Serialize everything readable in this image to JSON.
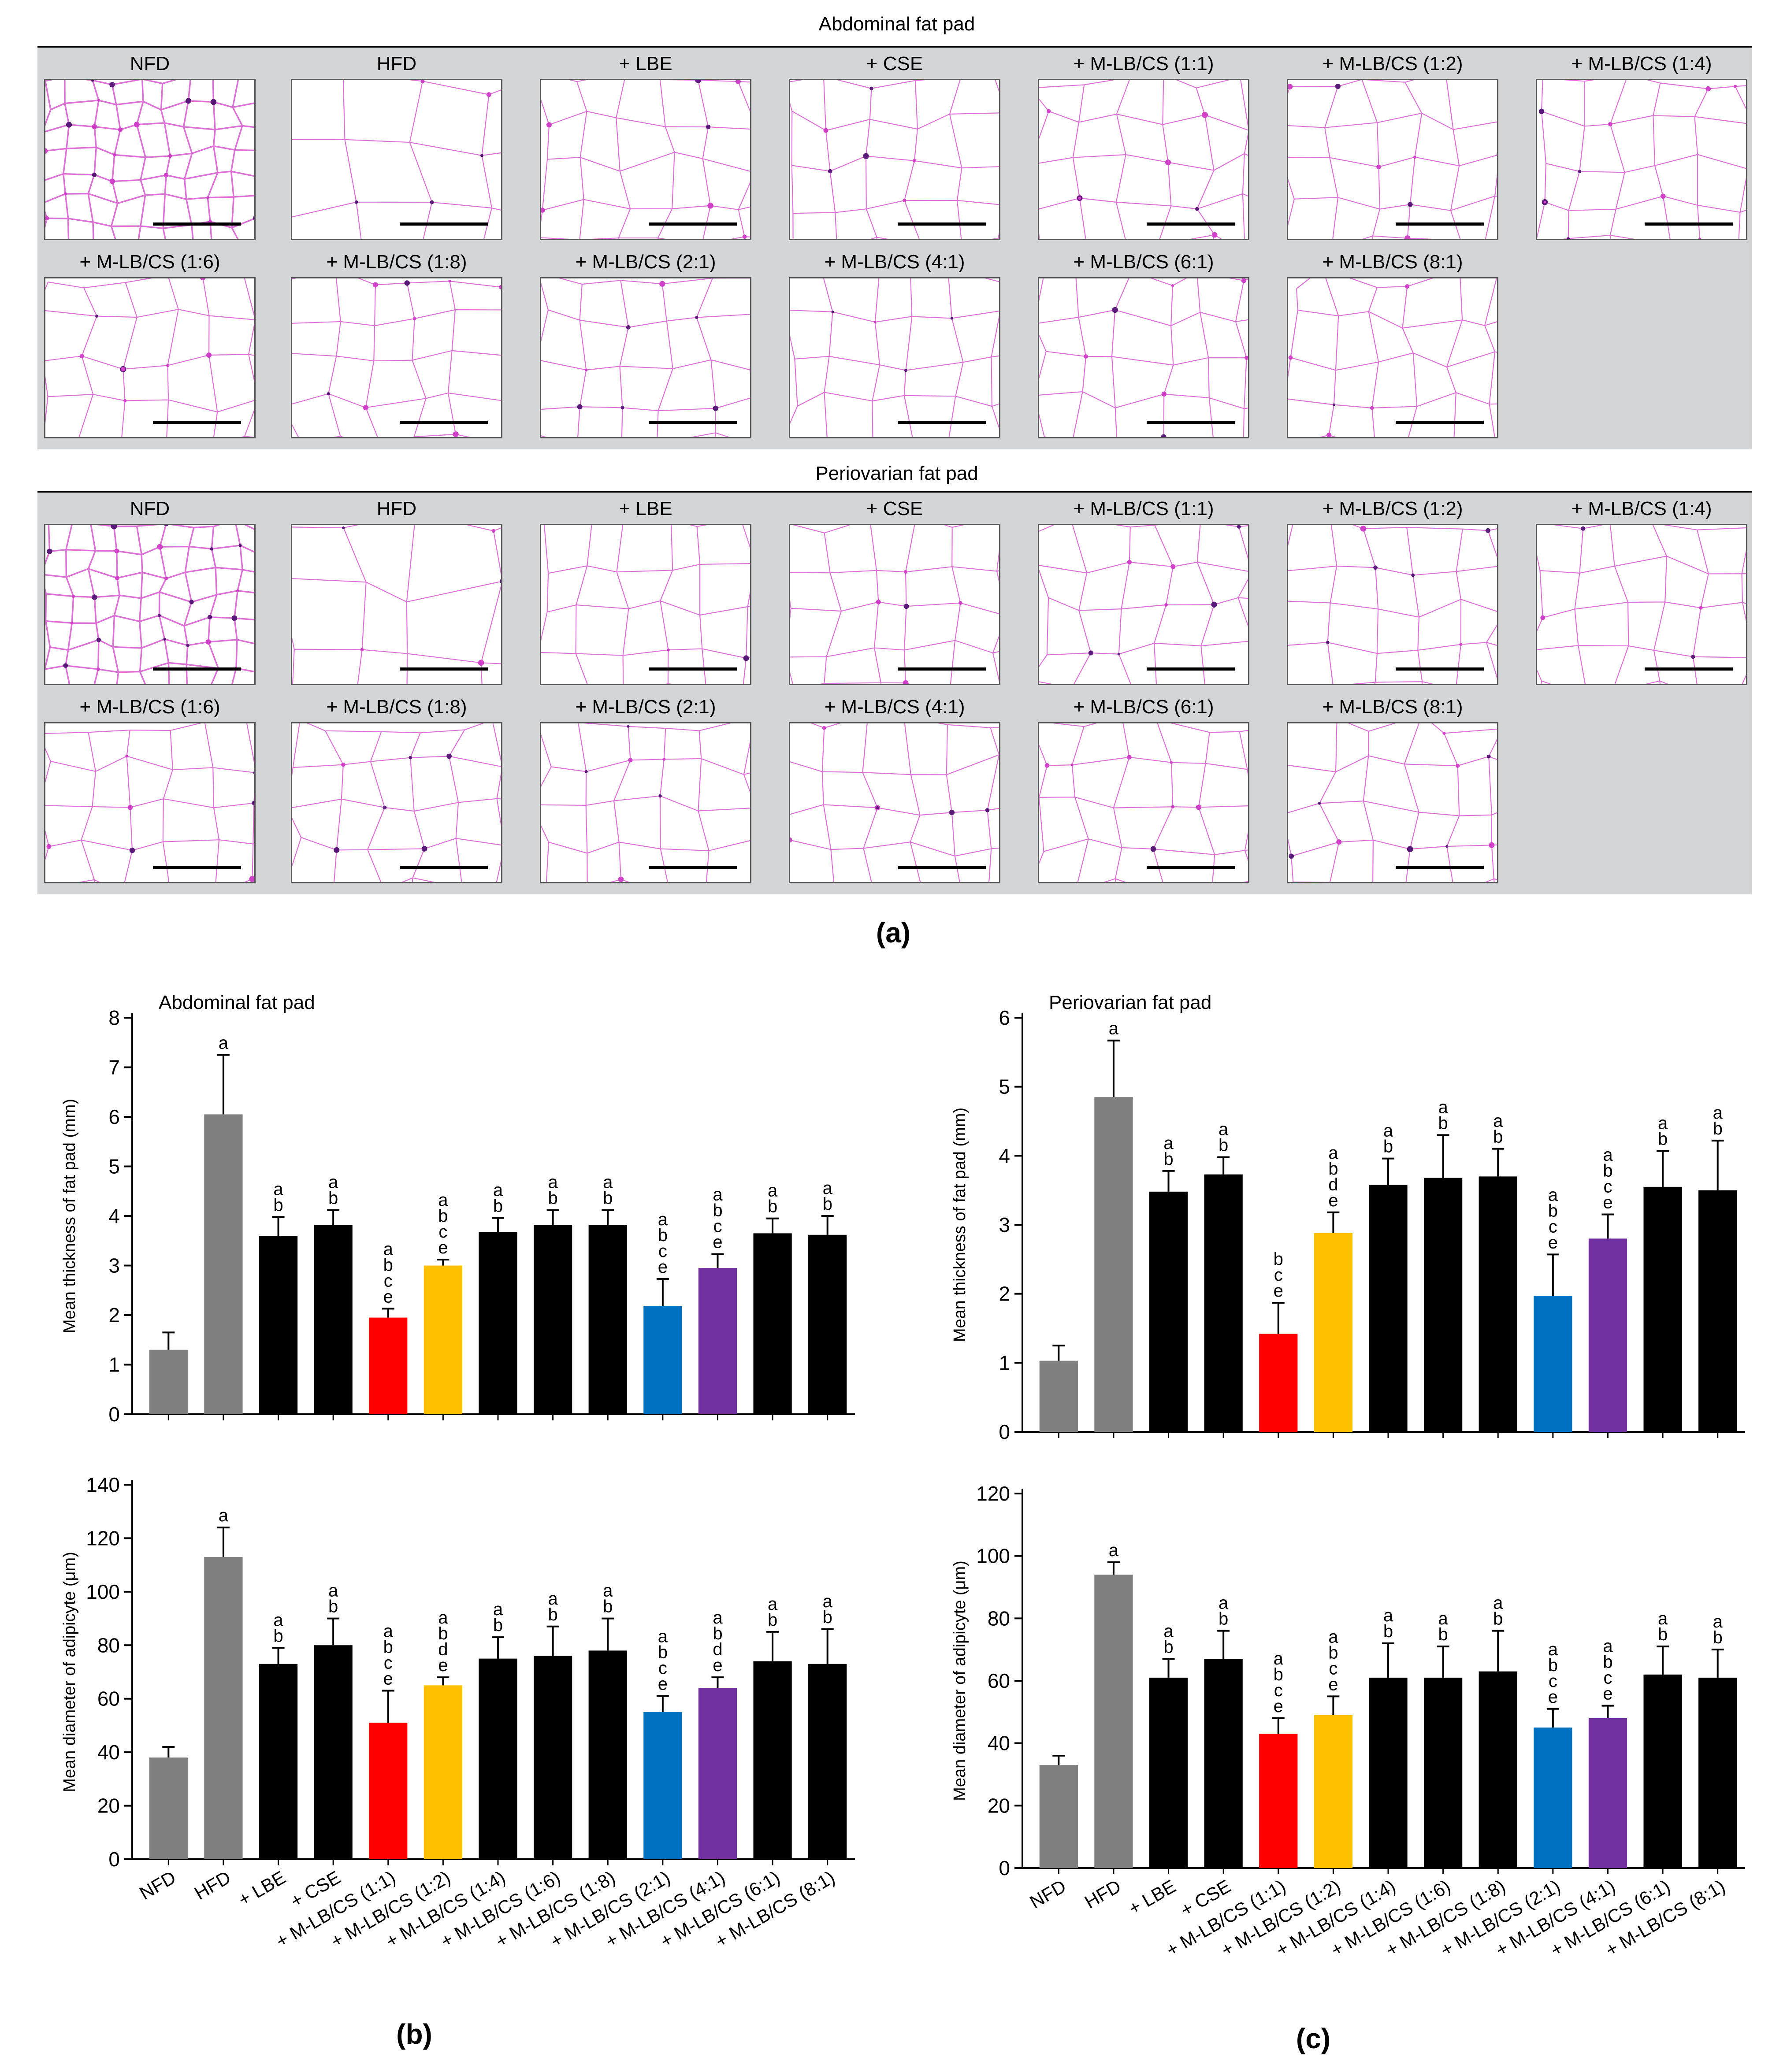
{
  "panel_a": {
    "groups": [
      "NFD",
      "HFD",
      "+ LBE",
      "+ CSE",
      "+ M-LB/CS (1:1)",
      "+ M-LB/CS (1:2)",
      "+ M-LB/CS (1:4)",
      "+ M-LB/CS (1:6)",
      "+ M-LB/CS (1:8)",
      "+ M-LB/CS (2:1)",
      "+ M-LB/CS (4:1)",
      "+ M-LB/CS (6:1)",
      "+ M-LB/CS (8:1)"
    ],
    "abdominal_title": "Abdominal fat pad",
    "periovarian_title": "Periovarian fat pad",
    "letter": "(a)"
  },
  "panel_b": {
    "letter": "(b)"
  },
  "panel_c": {
    "letter": "(c)"
  },
  "colors": {
    "gray": "#7f7f7f",
    "black": "#000000",
    "red": "#ff0000",
    "yellow": "#ffc000",
    "blue": "#0070c0",
    "purple": "#7030a0",
    "stain": "#d040c8"
  },
  "chart_data": [
    {
      "id": "b_top",
      "type": "bar",
      "title": "Abdominal fat pad",
      "xlabel": "",
      "ylabel": "Mean thickness of fat pad (mm)",
      "ylim": [
        0,
        8
      ],
      "yticks": [
        0,
        1,
        2,
        3,
        4,
        5,
        6,
        7,
        8
      ],
      "categories": [
        "NFD",
        "HFD",
        "+ LBE",
        "+ CSE",
        "+ M-LB/CS (1:1)",
        "+ M-LB/CS (1:2)",
        "+ M-LB/CS (1:4)",
        "+ M-LB/CS (1:6)",
        "+ M-LB/CS (1:8)",
        "+ M-LB/CS (2:1)",
        "+ M-LB/CS (4:1)",
        "+ M-LB/CS (6:1)",
        "+ M-LB/CS (8:1)"
      ],
      "values": [
        1.3,
        6.05,
        3.6,
        3.82,
        1.95,
        3.0,
        3.68,
        3.82,
        3.82,
        2.18,
        2.95,
        3.65,
        3.62
      ],
      "errors": [
        0.35,
        1.2,
        0.38,
        0.3,
        0.18,
        0.12,
        0.28,
        0.3,
        0.3,
        0.55,
        0.28,
        0.3,
        0.38
      ],
      "colors": [
        "gray",
        "gray",
        "black",
        "black",
        "red",
        "yellow",
        "black",
        "black",
        "black",
        "blue",
        "purple",
        "black",
        "black"
      ],
      "sig": [
        "",
        "a",
        "ab",
        "ab",
        "abce",
        "abce",
        "ab",
        "ab",
        "ab",
        "abce",
        "abce",
        "ab",
        "ab"
      ],
      "show_xlabels": false
    },
    {
      "id": "b_bottom",
      "type": "bar",
      "xlabel": "",
      "ylabel": "Mean diameter of adipicyte (μm)",
      "ylim": [
        0,
        140
      ],
      "yticks": [
        0,
        20,
        40,
        60,
        80,
        100,
        120,
        140
      ],
      "categories": [
        "NFD",
        "HFD",
        "+ LBE",
        "+ CSE",
        "+ M-LB/CS (1:1)",
        "+ M-LB/CS (1:2)",
        "+ M-LB/CS (1:4)",
        "+ M-LB/CS (1:6)",
        "+ M-LB/CS (1:8)",
        "+ M-LB/CS (2:1)",
        "+ M-LB/CS (4:1)",
        "+ M-LB/CS (6:1)",
        "+ M-LB/CS (8:1)"
      ],
      "values": [
        38,
        113,
        73,
        80,
        51,
        65,
        75,
        76,
        78,
        55,
        64,
        74,
        73
      ],
      "errors": [
        4,
        11,
        6,
        10,
        12,
        3,
        8,
        11,
        12,
        6,
        4,
        11,
        13
      ],
      "colors": [
        "gray",
        "gray",
        "black",
        "black",
        "red",
        "yellow",
        "black",
        "black",
        "black",
        "blue",
        "purple",
        "black",
        "black"
      ],
      "sig": [
        "",
        "a",
        "ab",
        "ab",
        "abce",
        "abde",
        "ab",
        "ab",
        "ab",
        "abce",
        "abde",
        "ab",
        "ab"
      ],
      "show_xlabels": true
    },
    {
      "id": "c_top",
      "type": "bar",
      "title": "Periovarian fat pad",
      "xlabel": "",
      "ylabel": "Mean thickness of fat pad (mm)",
      "ylim": [
        0,
        6
      ],
      "yticks": [
        0,
        1,
        2,
        3,
        4,
        5,
        6
      ],
      "categories": [
        "NFD",
        "HFD",
        "+ LBE",
        "+ CSE",
        "+ M-LB/CS (1:1)",
        "+ M-LB/CS (1:2)",
        "+ M-LB/CS (1:4)",
        "+ M-LB/CS (1:6)",
        "+ M-LB/CS (1:8)",
        "+ M-LB/CS (2:1)",
        "+ M-LB/CS (4:1)",
        "+ M-LB/CS (6:1)",
        "+ M-LB/CS (8:1)"
      ],
      "values": [
        1.03,
        4.85,
        3.48,
        3.73,
        1.42,
        2.88,
        3.58,
        3.68,
        3.7,
        1.97,
        2.8,
        3.55,
        3.5
      ],
      "errors": [
        0.22,
        0.82,
        0.3,
        0.25,
        0.45,
        0.3,
        0.38,
        0.62,
        0.4,
        0.6,
        0.35,
        0.52,
        0.72
      ],
      "colors": [
        "gray",
        "gray",
        "black",
        "black",
        "red",
        "yellow",
        "black",
        "black",
        "black",
        "blue",
        "purple",
        "black",
        "black"
      ],
      "sig": [
        "",
        "a",
        "ab",
        "ab",
        "bce",
        "abde",
        "ab",
        "ab",
        "ab",
        "abce",
        "abce",
        "ab",
        "ab"
      ],
      "show_xlabels": false
    },
    {
      "id": "c_bottom",
      "type": "bar",
      "xlabel": "",
      "ylabel": "Mean diameter of adipicyte (μm)",
      "ylim": [
        0,
        120
      ],
      "yticks": [
        0,
        20,
        40,
        60,
        80,
        100,
        120
      ],
      "categories": [
        "NFD",
        "HFD",
        "+ LBE",
        "+ CSE",
        "+ M-LB/CS (1:1)",
        "+ M-LB/CS (1:2)",
        "+ M-LB/CS (1:4)",
        "+ M-LB/CS (1:6)",
        "+ M-LB/CS (1:8)",
        "+ M-LB/CS (2:1)",
        "+ M-LB/CS (4:1)",
        "+ M-LB/CS (6:1)",
        "+ M-LB/CS (8:1)"
      ],
      "values": [
        33,
        94,
        61,
        67,
        43,
        49,
        61,
        61,
        63,
        45,
        48,
        62,
        61
      ],
      "errors": [
        3,
        4,
        6,
        9,
        5,
        6,
        11,
        10,
        13,
        6,
        4,
        9,
        9
      ],
      "colors": [
        "gray",
        "gray",
        "black",
        "black",
        "red",
        "yellow",
        "black",
        "black",
        "black",
        "blue",
        "purple",
        "black",
        "black"
      ],
      "sig": [
        "",
        "a",
        "ab",
        "ab",
        "abce",
        "abce",
        "ab",
        "ab",
        "ab",
        "abce",
        "abce",
        "ab",
        "ab"
      ],
      "show_xlabels": true
    }
  ]
}
